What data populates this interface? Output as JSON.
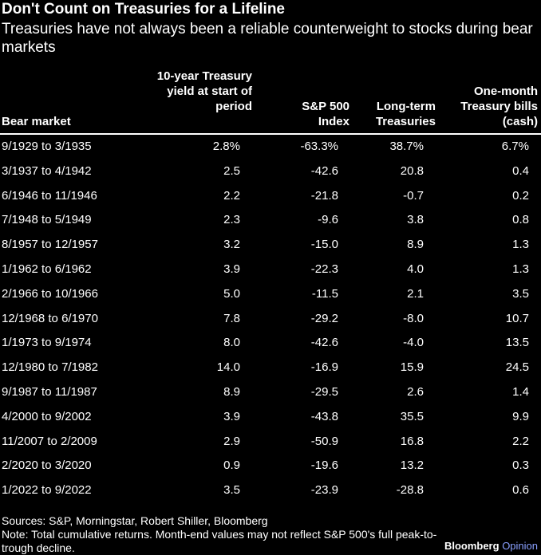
{
  "header": {
    "title": "Don't Count on Treasuries for a Lifeline",
    "subtitle": "Treasuries have not always been a reliable counterweight to stocks during bear markets"
  },
  "chart_data": {
    "type": "table",
    "columns": [
      "Bear market",
      "10-year Treasury yield at start of period",
      "S&P 500 Index",
      "Long-term Treasuries",
      "One-month Treasury bills (cash)"
    ],
    "rows": [
      [
        "9/1929 to 3/1935",
        "2.8%",
        "-63.3%",
        "38.7%",
        "6.7%"
      ],
      [
        "3/1937 to 4/1942",
        "2.5",
        "-42.6",
        "20.8",
        "0.4"
      ],
      [
        "6/1946 to 11/1946",
        "2.2",
        "-21.8",
        "-0.7",
        "0.2"
      ],
      [
        "7/1948 to 5/1949",
        "2.3",
        "-9.6",
        "3.8",
        "0.8"
      ],
      [
        "8/1957 to 12/1957",
        "3.2",
        "-15.0",
        "8.9",
        "1.3"
      ],
      [
        "1/1962 to 6/1962",
        "3.9",
        "-22.3",
        "4.0",
        "1.3"
      ],
      [
        "2/1966 to 10/1966",
        "5.0",
        "-11.5",
        "2.1",
        "3.5"
      ],
      [
        "12/1968 to 6/1970",
        "7.8",
        "-29.2",
        "-8.0",
        "10.7"
      ],
      [
        "1/1973 to 9/1974",
        "8.0",
        "-42.6",
        "-4.0",
        "13.5"
      ],
      [
        "12/1980 to 7/1982",
        "14.0",
        "-16.9",
        "15.9",
        "24.5"
      ],
      [
        "9/1987 to 11/1987",
        "8.9",
        "-29.5",
        "2.6",
        "1.4"
      ],
      [
        "4/2000 to 9/2002",
        "3.9",
        "-43.8",
        "35.5",
        "9.9"
      ],
      [
        "11/2007 to 2/2009",
        "2.9",
        "-50.9",
        "16.8",
        "2.2"
      ],
      [
        "2/2020 to 3/2020",
        "0.9",
        "-19.6",
        "13.2",
        "0.3"
      ],
      [
        "1/2022 to 9/2022",
        "3.5",
        "-23.9",
        "-28.8",
        "0.6"
      ]
    ]
  },
  "footer": {
    "sources": "Sources: S&P, Morningstar, Robert Shiller, Bloomberg",
    "note": "Note: Total cumulative returns. Month-end values may not reflect S&P 500's full peak-to-trough decline.",
    "brand": "Bloomberg",
    "brand_suffix": "Opinion"
  }
}
